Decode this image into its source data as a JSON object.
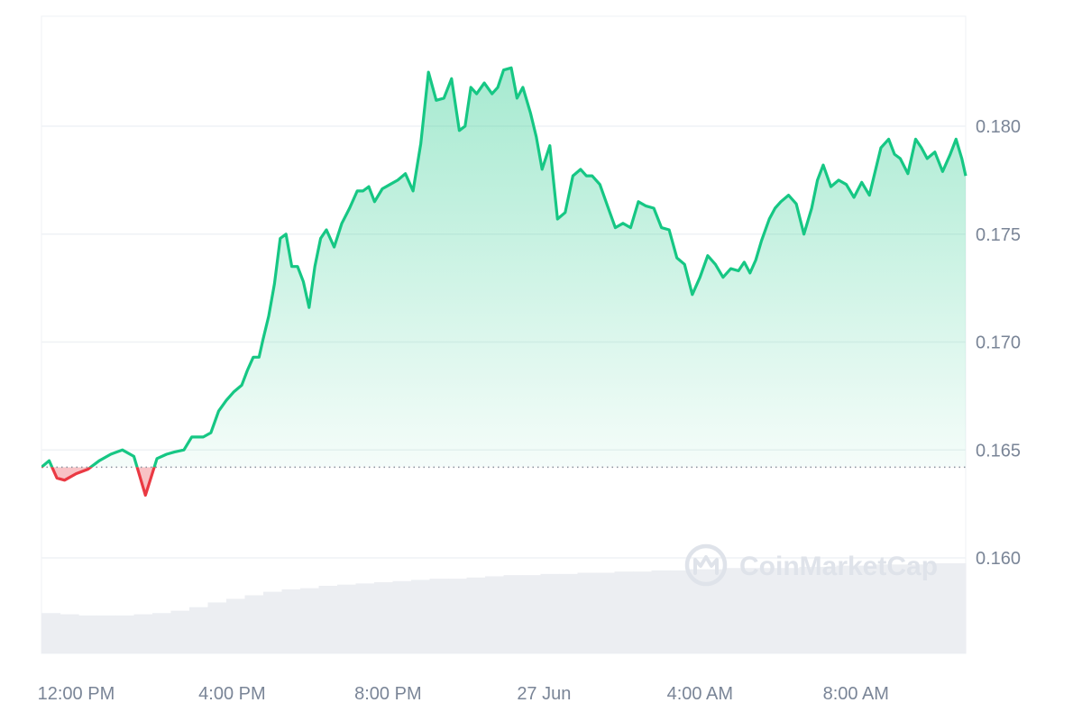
{
  "watermark": {
    "text": "CoinMarketCap",
    "icon": "coinmarketcap-logo-icon"
  },
  "colors": {
    "up_line": "#16c784",
    "down_line": "#ea3943",
    "up_fill": "#16c784",
    "down_fill": "#ea3943",
    "volume": "#eceef2",
    "grid": "#eff2f5",
    "baseline": "#8a919e",
    "axis_text": "#7a8597"
  },
  "chart_data": {
    "type": "area",
    "title": "",
    "xlabel": "",
    "ylabel": "",
    "ylim": [
      0.1555,
      0.1855
    ],
    "y_ticks": [
      0.16,
      0.165,
      0.17,
      0.175,
      0.18
    ],
    "y_tick_labels": [
      "0.160",
      "0.165",
      "0.170",
      "0.175",
      "0.180"
    ],
    "x_tick_labels": [
      "12:00 PM",
      "4:00 PM",
      "8:00 PM",
      "27 Jun",
      "4:00 AM",
      "8:00 AM"
    ],
    "x_tick_positions_hours": [
      0.9,
      4.95,
      9.0,
      13.05,
      17.1,
      21.15
    ],
    "x_range_hours": [
      0,
      24
    ],
    "baseline_value": 0.1642,
    "grid": true,
    "legend": "none",
    "series": [
      {
        "hours": [
          0,
          0.2,
          0.4,
          0.6,
          0.9,
          1.2,
          1.5,
          1.8,
          2.1,
          2.4,
          2.7,
          3.0,
          3.25,
          3.45,
          3.7,
          3.9,
          4.2,
          4.4,
          4.6,
          4.8,
          5.0,
          5.2,
          5.35,
          5.5,
          5.65,
          5.75,
          5.9,
          6.05,
          6.2,
          6.35,
          6.5,
          6.65,
          6.8,
          6.95,
          7.1,
          7.25,
          7.4,
          7.6,
          7.8,
          8.0,
          8.2,
          8.35,
          8.5,
          8.65,
          8.85,
          9.05,
          9.25,
          9.45,
          9.65,
          9.85,
          10.05,
          10.25,
          10.45,
          10.65,
          10.85,
          11.0,
          11.15,
          11.3,
          11.5,
          11.7,
          11.85,
          12.0,
          12.2,
          12.35,
          12.5,
          12.7,
          12.85,
          13.0,
          13.2,
          13.4,
          13.6,
          13.8,
          14.0,
          14.15,
          14.3,
          14.5,
          14.7,
          14.9,
          15.1,
          15.3,
          15.5,
          15.7,
          15.9,
          16.1,
          16.3,
          16.5,
          16.7,
          16.9,
          17.1,
          17.3,
          17.5,
          17.7,
          17.9,
          18.1,
          18.25,
          18.4,
          18.55,
          18.7,
          18.9,
          19.05,
          19.2,
          19.4,
          19.6,
          19.8,
          20.0,
          20.15,
          20.3,
          20.5,
          20.7,
          20.9,
          21.1,
          21.3,
          21.5,
          21.65,
          21.8,
          22.0,
          22.15,
          22.3,
          22.5,
          22.7,
          22.85,
          23.0,
          23.2,
          23.4,
          23.6,
          23.75,
          23.9,
          24.0
        ],
        "values": [
          0.1642,
          0.1645,
          0.1637,
          0.1636,
          0.1639,
          0.1641,
          0.1645,
          0.1648,
          0.165,
          0.1647,
          0.1629,
          0.1646,
          0.1648,
          0.1649,
          0.165,
          0.1656,
          0.1656,
          0.1658,
          0.1668,
          0.1673,
          0.1677,
          0.168,
          0.1687,
          0.1693,
          0.1693,
          0.1701,
          0.1712,
          0.1727,
          0.1748,
          0.175,
          0.1735,
          0.1735,
          0.1728,
          0.1716,
          0.1735,
          0.1748,
          0.1752,
          0.1744,
          0.1755,
          0.1762,
          0.177,
          0.177,
          0.1772,
          0.1765,
          0.1771,
          0.1773,
          0.1775,
          0.1778,
          0.177,
          0.1792,
          0.1825,
          0.1812,
          0.1813,
          0.1822,
          0.1798,
          0.18,
          0.1818,
          0.1815,
          0.182,
          0.1815,
          0.1818,
          0.1826,
          0.1827,
          0.1813,
          0.1818,
          0.1806,
          0.1795,
          0.178,
          0.1791,
          0.1757,
          0.176,
          0.1777,
          0.178,
          0.1777,
          0.1777,
          0.1773,
          0.1763,
          0.1753,
          0.1755,
          0.1753,
          0.1765,
          0.1763,
          0.1762,
          0.1753,
          0.1752,
          0.1739,
          0.1736,
          0.1722,
          0.173,
          0.174,
          0.1736,
          0.173,
          0.1734,
          0.1733,
          0.1737,
          0.1732,
          0.1738,
          0.1747,
          0.1757,
          0.1762,
          0.1765,
          0.1768,
          0.1764,
          0.175,
          0.1762,
          0.1775,
          0.1782,
          0.1772,
          0.1775,
          0.1773,
          0.1767,
          0.1774,
          0.1768,
          0.1779,
          0.179,
          0.1794,
          0.1787,
          0.1785,
          0.1778,
          0.1794,
          0.179,
          0.1785,
          0.1788,
          0.1779,
          0.1787,
          0.1794,
          0.1785,
          0.1777
        ]
      }
    ],
    "volume_relative": [
      0.34,
      0.33,
      0.32,
      0.32,
      0.32,
      0.33,
      0.34,
      0.36,
      0.39,
      0.43,
      0.46,
      0.49,
      0.52,
      0.54,
      0.55,
      0.57,
      0.58,
      0.59,
      0.6,
      0.61,
      0.62,
      0.63,
      0.63,
      0.64,
      0.65,
      0.66,
      0.66,
      0.67,
      0.67,
      0.68,
      0.68,
      0.69,
      0.69,
      0.7,
      0.7,
      0.71,
      0.71,
      0.72,
      0.72,
      0.72,
      0.72,
      0.73,
      0.73,
      0.74,
      0.74,
      0.75,
      0.75,
      0.75,
      0.76,
      0.76
    ]
  }
}
